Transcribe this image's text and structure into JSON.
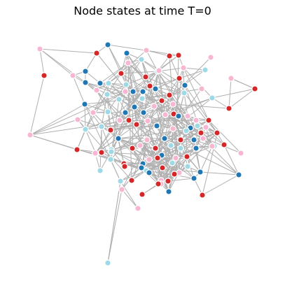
{
  "title": "Node states at time T=0",
  "state_colors": {
    "dark_blue": "#1f77b4",
    "light_blue": "#9edae5",
    "red": "#d62728",
    "pink": "#f7b6d2"
  },
  "edge_color": "#b0b0b0",
  "nodes": [
    {
      "id": 0,
      "state": "pink"
    },
    {
      "id": 1,
      "state": "dark_blue"
    },
    {
      "id": 2,
      "state": "red"
    },
    {
      "id": 3,
      "state": "dark_blue"
    },
    {
      "id": 4,
      "state": "pink"
    },
    {
      "id": 5,
      "state": "red"
    },
    {
      "id": 6,
      "state": "red"
    },
    {
      "id": 7,
      "state": "pink"
    },
    {
      "id": 8,
      "state": "red"
    },
    {
      "id": 9,
      "state": "light_blue"
    },
    {
      "id": 10,
      "state": "dark_blue"
    },
    {
      "id": 11,
      "state": "light_blue"
    },
    {
      "id": 12,
      "state": "pink"
    },
    {
      "id": 13,
      "state": "red"
    },
    {
      "id": 14,
      "state": "dark_blue"
    },
    {
      "id": 15,
      "state": "dark_blue"
    },
    {
      "id": 16,
      "state": "pink"
    },
    {
      "id": 17,
      "state": "light_blue"
    },
    {
      "id": 18,
      "state": "red"
    },
    {
      "id": 19,
      "state": "pink"
    },
    {
      "id": 20,
      "state": "red"
    },
    {
      "id": 21,
      "state": "pink"
    },
    {
      "id": 22,
      "state": "light_blue"
    },
    {
      "id": 23,
      "state": "red"
    },
    {
      "id": 24,
      "state": "pink"
    },
    {
      "id": 25,
      "state": "dark_blue"
    },
    {
      "id": 26,
      "state": "dark_blue"
    },
    {
      "id": 27,
      "state": "light_blue"
    },
    {
      "id": 28,
      "state": "pink"
    },
    {
      "id": 29,
      "state": "dark_blue"
    },
    {
      "id": 30,
      "state": "red"
    },
    {
      "id": 31,
      "state": "light_blue"
    },
    {
      "id": 32,
      "state": "pink"
    },
    {
      "id": 33,
      "state": "red"
    },
    {
      "id": 34,
      "state": "dark_blue"
    },
    {
      "id": 35,
      "state": "light_blue"
    },
    {
      "id": 36,
      "state": "pink"
    },
    {
      "id": 37,
      "state": "dark_blue"
    },
    {
      "id": 38,
      "state": "light_blue"
    },
    {
      "id": 39,
      "state": "pink"
    },
    {
      "id": 40,
      "state": "red"
    },
    {
      "id": 41,
      "state": "pink"
    },
    {
      "id": 42,
      "state": "dark_blue"
    },
    {
      "id": 43,
      "state": "light_blue"
    },
    {
      "id": 44,
      "state": "pink"
    },
    {
      "id": 45,
      "state": "red"
    },
    {
      "id": 46,
      "state": "dark_blue"
    },
    {
      "id": 47,
      "state": "pink"
    },
    {
      "id": 48,
      "state": "light_blue"
    },
    {
      "id": 49,
      "state": "red"
    },
    {
      "id": 50,
      "state": "dark_blue"
    },
    {
      "id": 51,
      "state": "pink"
    },
    {
      "id": 52,
      "state": "light_blue"
    },
    {
      "id": 53,
      "state": "red"
    },
    {
      "id": 54,
      "state": "pink"
    },
    {
      "id": 55,
      "state": "dark_blue"
    },
    {
      "id": 56,
      "state": "light_blue"
    },
    {
      "id": 57,
      "state": "red"
    },
    {
      "id": 58,
      "state": "pink"
    },
    {
      "id": 59,
      "state": "light_blue"
    },
    {
      "id": 60,
      "state": "red"
    },
    {
      "id": 61,
      "state": "dark_blue"
    },
    {
      "id": 62,
      "state": "pink"
    },
    {
      "id": 63,
      "state": "light_blue"
    },
    {
      "id": 64,
      "state": "red"
    },
    {
      "id": 65,
      "state": "pink"
    },
    {
      "id": 66,
      "state": "dark_blue"
    },
    {
      "id": 67,
      "state": "red"
    },
    {
      "id": 68,
      "state": "pink"
    },
    {
      "id": 69,
      "state": "light_blue"
    },
    {
      "id": 70,
      "state": "pink"
    },
    {
      "id": 71,
      "state": "red"
    },
    {
      "id": 72,
      "state": "dark_blue"
    },
    {
      "id": 73,
      "state": "pink"
    },
    {
      "id": 74,
      "state": "light_blue"
    },
    {
      "id": 75,
      "state": "red"
    },
    {
      "id": 76,
      "state": "dark_blue"
    },
    {
      "id": 77,
      "state": "pink"
    },
    {
      "id": 78,
      "state": "light_blue"
    },
    {
      "id": 79,
      "state": "red"
    },
    {
      "id": 80,
      "state": "pink"
    },
    {
      "id": 81,
      "state": "red"
    },
    {
      "id": 82,
      "state": "dark_blue"
    },
    {
      "id": 83,
      "state": "red"
    },
    {
      "id": 84,
      "state": "light_blue"
    },
    {
      "id": 85,
      "state": "red"
    },
    {
      "id": 86,
      "state": "pink"
    },
    {
      "id": 87,
      "state": "red"
    },
    {
      "id": 88,
      "state": "dark_blue"
    },
    {
      "id": 89,
      "state": "light_blue"
    },
    {
      "id": 90,
      "state": "dark_blue"
    },
    {
      "id": 91,
      "state": "red"
    },
    {
      "id": 92,
      "state": "pink"
    },
    {
      "id": 93,
      "state": "light_blue"
    },
    {
      "id": 94,
      "state": "red"
    },
    {
      "id": 95,
      "state": "pink"
    },
    {
      "id": 96,
      "state": "dark_blue"
    },
    {
      "id": 97,
      "state": "red"
    },
    {
      "id": 98,
      "state": "pink"
    },
    {
      "id": 99,
      "state": "light_blue"
    },
    {
      "id": 100,
      "state": "red"
    },
    {
      "id": 101,
      "state": "pink"
    },
    {
      "id": 102,
      "state": "dark_blue"
    },
    {
      "id": 103,
      "state": "light_blue"
    },
    {
      "id": 104,
      "state": "red"
    },
    {
      "id": 105,
      "state": "dark_blue"
    },
    {
      "id": 106,
      "state": "light_blue"
    },
    {
      "id": 107,
      "state": "red"
    },
    {
      "id": 108,
      "state": "dark_blue"
    },
    {
      "id": 109,
      "state": "pink"
    }
  ]
}
